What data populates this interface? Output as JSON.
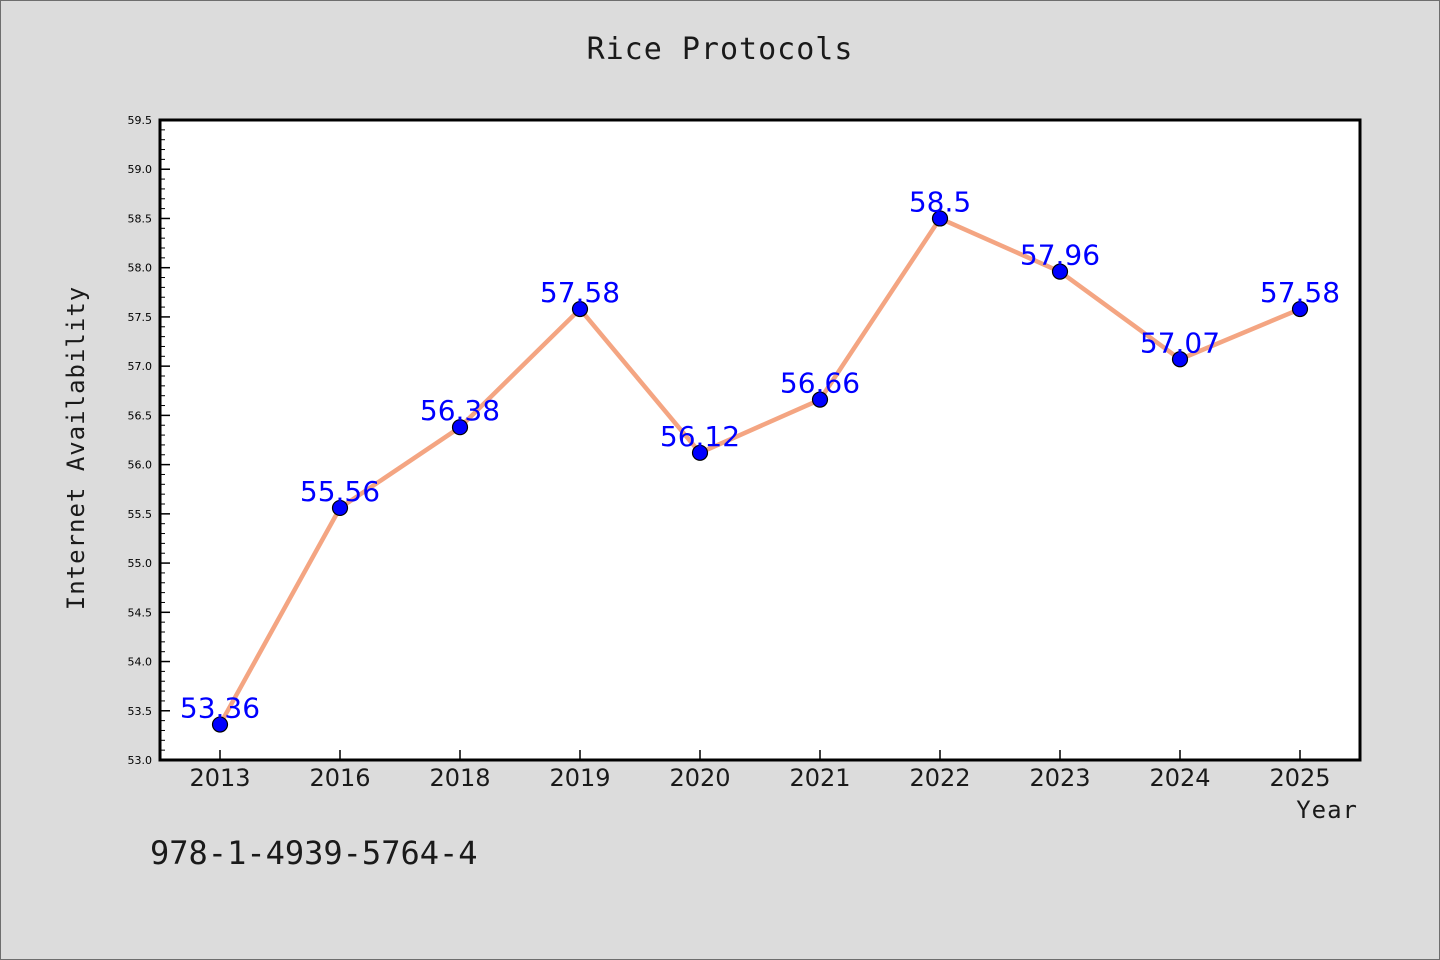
{
  "chart_data": {
    "type": "line",
    "title": "Rice Protocols",
    "xlabel": "Year",
    "ylabel": "Internet Availability",
    "categories": [
      "2013",
      "2016",
      "2018",
      "2019",
      "2020",
      "2021",
      "2022",
      "2023",
      "2024",
      "2025"
    ],
    "series": [
      {
        "values": [
          53.36,
          55.56,
          56.38,
          57.58,
          56.12,
          56.66,
          58.5,
          57.96,
          57.07,
          57.58
        ],
        "labels": [
          "53.36",
          "55.56",
          "56.38",
          "57.58",
          "56.12",
          "56.66",
          "58.5",
          "57.96",
          "57.07",
          "57.58"
        ],
        "line_color": "#f4a582",
        "marker_color": "#0000ff",
        "label_color": "#0000ff"
      }
    ],
    "ylim": [
      53.0,
      59.5
    ],
    "yticks": [
      "53.0",
      "53.5",
      "54.0",
      "54.5",
      "55.0",
      "55.5",
      "56.0",
      "56.5",
      "57.0",
      "57.5",
      "58.0",
      "58.5",
      "59.0",
      "59.5"
    ],
    "grid": false,
    "legend": "none"
  },
  "footnote": "978-1-4939-5764-4",
  "colors": {
    "background": "#dcdcdc",
    "plot_background": "#ffffff",
    "axis": "#000000"
  }
}
